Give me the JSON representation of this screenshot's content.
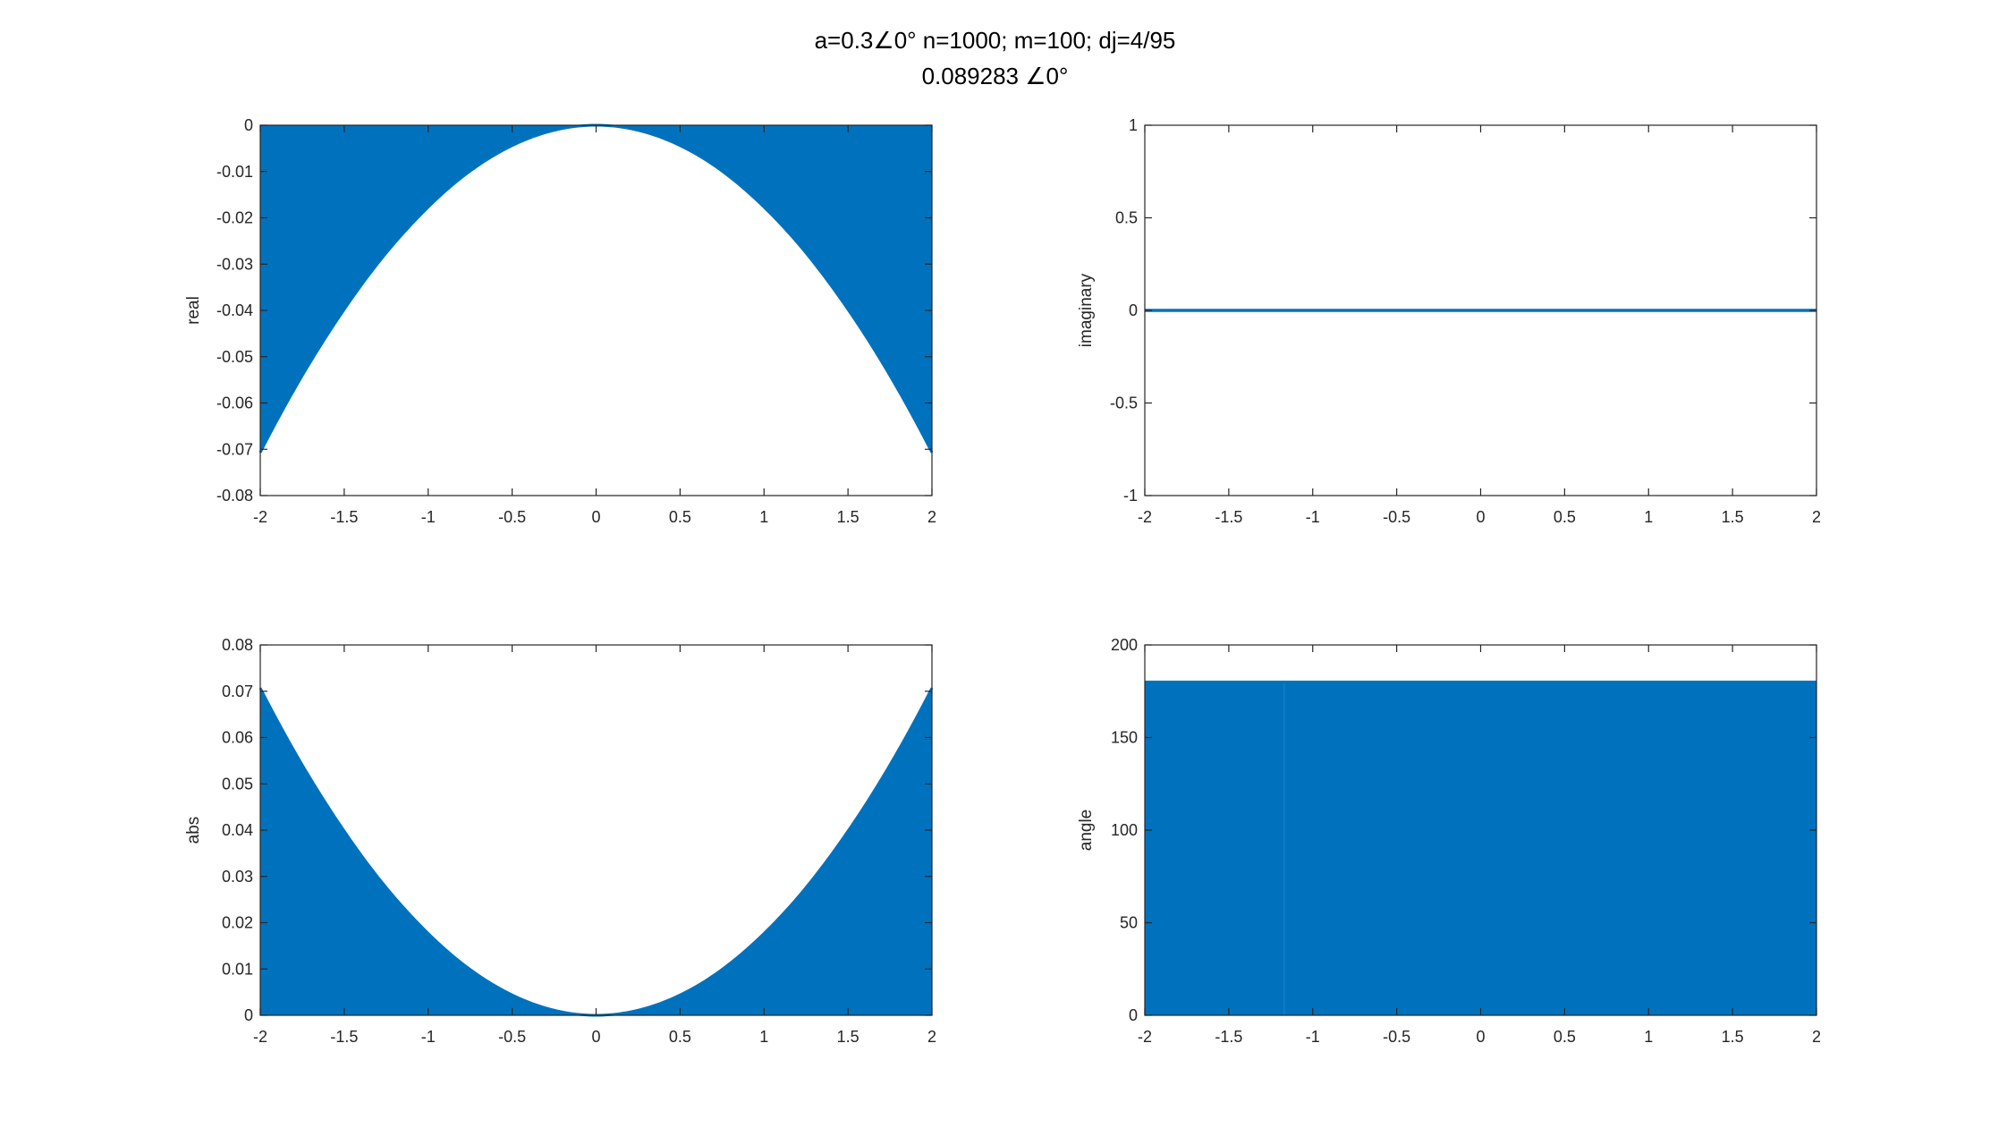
{
  "figure": {
    "title_line1": "a=0.3∠0° n=1000; m=100; dj=4/95",
    "title_line2": "0.089283 ∠0°"
  },
  "colors": {
    "series": "#0072BD",
    "axes": "#262626"
  },
  "chart_data": [
    {
      "type": "area",
      "name": "real-plot",
      "ylabel": "real",
      "xlim": [
        -2,
        2
      ],
      "ylim": [
        -0.08,
        0
      ],
      "xticks": [
        -2,
        -1.5,
        -1,
        -0.5,
        0,
        0.5,
        1,
        1.5,
        2
      ],
      "yticks": [
        -0.08,
        -0.07,
        -0.06,
        -0.05,
        -0.04,
        -0.03,
        -0.02,
        -0.01,
        0
      ],
      "xticklabels": [
        "-2",
        "-1.5",
        "-1",
        "-0.5",
        "0",
        "0.5",
        "1",
        "1.5",
        "2"
      ],
      "yticklabels": [
        "-0.08",
        "-0.07",
        "-0.06",
        "-0.05",
        "-0.04",
        "-0.03",
        "-0.02",
        "-0.01",
        "0"
      ],
      "fill_baseline": 0,
      "curve": {
        "x": [
          -2,
          -1.75,
          -1.5,
          -1.25,
          -1,
          -0.75,
          -0.5,
          -0.25,
          0,
          0.25,
          0.5,
          0.75,
          1,
          1.25,
          1.5,
          1.75,
          2
        ],
        "y": [
          -0.0707,
          -0.0541,
          -0.0398,
          -0.0276,
          -0.0177,
          -0.0099,
          -0.0044,
          -0.0011,
          0,
          -0.0011,
          -0.0044,
          -0.0099,
          -0.0177,
          -0.0276,
          -0.0398,
          -0.0541,
          -0.0707
        ]
      }
    },
    {
      "type": "line",
      "name": "imaginary-plot",
      "ylabel": "imaginary",
      "xlim": [
        -2,
        2
      ],
      "ylim": [
        -1,
        1
      ],
      "xticks": [
        -2,
        -1.5,
        -1,
        -0.5,
        0,
        0.5,
        1,
        1.5,
        2
      ],
      "yticks": [
        -1,
        -0.5,
        0,
        0.5,
        1
      ],
      "xticklabels": [
        "-2",
        "-1.5",
        "-1",
        "-0.5",
        "0",
        "0.5",
        "1",
        "1.5",
        "2"
      ],
      "yticklabels": [
        "-1",
        "-0.5",
        "0",
        "0.5",
        "1"
      ],
      "curve": {
        "x": [
          -2,
          2
        ],
        "y": [
          0,
          0
        ]
      }
    },
    {
      "type": "area",
      "name": "abs-plot",
      "ylabel": "abs",
      "xlim": [
        -2,
        2
      ],
      "ylim": [
        0,
        0.08
      ],
      "xticks": [
        -2,
        -1.5,
        -1,
        -0.5,
        0,
        0.5,
        1,
        1.5,
        2
      ],
      "yticks": [
        0,
        0.01,
        0.02,
        0.03,
        0.04,
        0.05,
        0.06,
        0.07,
        0.08
      ],
      "xticklabels": [
        "-2",
        "-1.5",
        "-1",
        "-0.5",
        "0",
        "0.5",
        "1",
        "1.5",
        "2"
      ],
      "yticklabels": [
        "0",
        "0.01",
        "0.02",
        "0.03",
        "0.04",
        "0.05",
        "0.06",
        "0.07",
        "0.08"
      ],
      "fill_baseline": 0,
      "curve": {
        "x": [
          -2,
          -1.75,
          -1.5,
          -1.25,
          -1,
          -0.75,
          -0.5,
          -0.25,
          0,
          0.25,
          0.5,
          0.75,
          1,
          1.25,
          1.5,
          1.75,
          2
        ],
        "y": [
          0.0707,
          0.0541,
          0.0398,
          0.0276,
          0.0177,
          0.0099,
          0.0044,
          0.0011,
          0,
          0.0011,
          0.0044,
          0.0099,
          0.0177,
          0.0276,
          0.0398,
          0.0541,
          0.0707
        ]
      }
    },
    {
      "type": "area",
      "name": "angle-plot",
      "ylabel": "angle",
      "xlim": [
        -2,
        2
      ],
      "ylim": [
        0,
        200
      ],
      "xticks": [
        -2,
        -1.5,
        -1,
        -0.5,
        0,
        0.5,
        1,
        1.5,
        2
      ],
      "yticks": [
        0,
        50,
        100,
        150,
        200
      ],
      "xticklabels": [
        "-2",
        "-1.5",
        "-1",
        "-0.5",
        "0",
        "0.5",
        "1",
        "1.5",
        "2"
      ],
      "yticklabels": [
        "0",
        "50",
        "100",
        "150",
        "200"
      ],
      "fill_baseline": 0,
      "curve": {
        "x": [
          -2,
          2
        ],
        "y": [
          180,
          180
        ]
      },
      "seam_x": -1.17
    }
  ]
}
